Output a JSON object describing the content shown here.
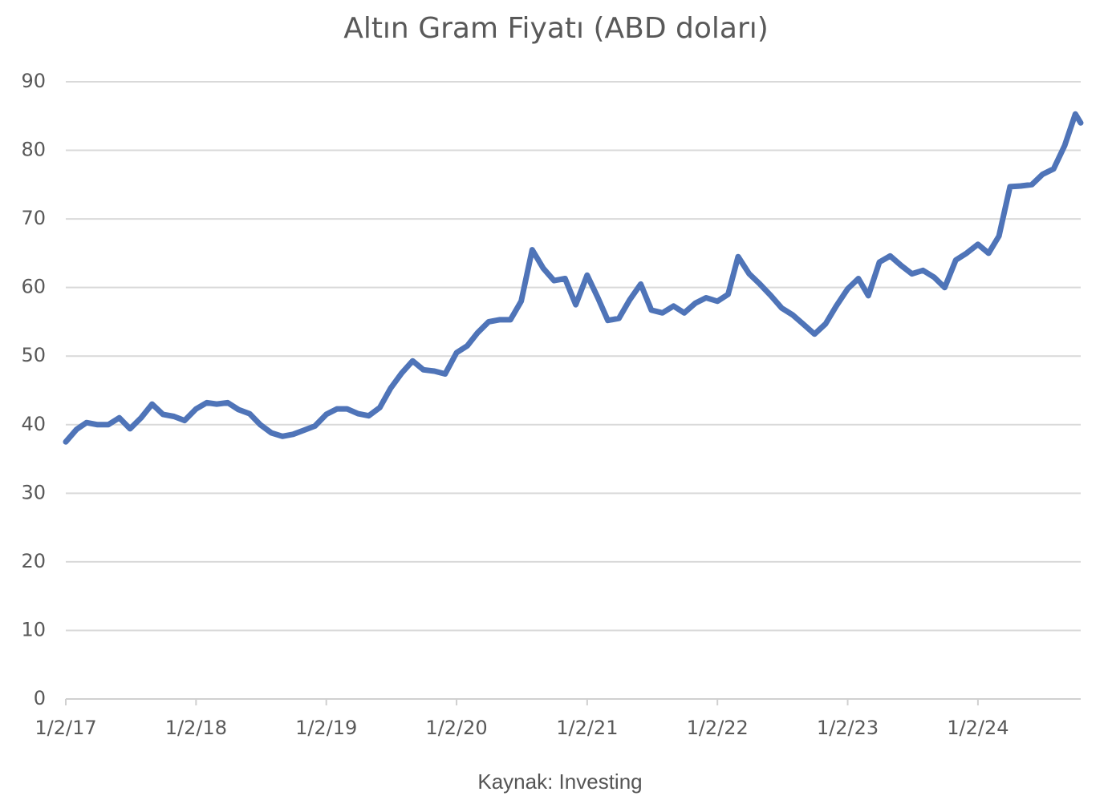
{
  "chart_data": {
    "type": "line",
    "title": "Altın Gram Fiyatı (ABD doları)",
    "source": "Kaynak: Investing",
    "x": [
      "1/2/17",
      "2/1/17",
      "3/1/17",
      "4/1/17",
      "5/1/17",
      "6/1/17",
      "7/1/17",
      "8/1/17",
      "9/1/17",
      "10/1/17",
      "11/1/17",
      "12/1/17",
      "1/2/18",
      "2/1/18",
      "3/1/18",
      "4/1/18",
      "5/1/18",
      "6/1/18",
      "7/1/18",
      "8/1/18",
      "9/1/18",
      "10/1/18",
      "11/1/18",
      "12/1/18",
      "1/2/19",
      "2/1/19",
      "3/1/19",
      "4/1/19",
      "5/1/19",
      "6/1/19",
      "7/1/19",
      "8/1/19",
      "9/1/19",
      "10/1/19",
      "11/1/19",
      "12/1/19",
      "1/2/20",
      "2/1/20",
      "3/1/20",
      "4/1/20",
      "5/1/20",
      "6/1/20",
      "7/1/20",
      "8/1/20",
      "9/1/20",
      "10/1/20",
      "11/1/20",
      "12/1/20",
      "1/2/21",
      "2/1/21",
      "3/1/21",
      "4/1/21",
      "5/1/21",
      "6/1/21",
      "7/1/21",
      "8/1/21",
      "9/1/21",
      "10/1/21",
      "11/1/21",
      "12/1/21",
      "1/2/22",
      "2/1/22",
      "3/1/22",
      "4/1/22",
      "5/1/22",
      "6/1/22",
      "7/1/22",
      "8/1/22",
      "9/1/22",
      "10/1/22",
      "11/1/22",
      "12/1/22",
      "1/2/23",
      "2/1/23",
      "3/1/23",
      "4/1/23",
      "5/1/23",
      "6/1/23",
      "7/1/23",
      "8/1/23",
      "9/1/23",
      "10/1/23",
      "11/1/23",
      "12/1/23",
      "1/2/24",
      "2/1/24",
      "3/1/24",
      "4/1/24",
      "5/1/24",
      "6/1/24",
      "7/1/24",
      "8/1/24",
      "9/1/24",
      "10/1/24",
      "10/16/24"
    ],
    "series": [
      {
        "name": "Altın Gram Fiyatı",
        "color": "#4f74b8",
        "values": [
          37.5,
          39.3,
          40.3,
          40,
          40,
          41,
          39.4,
          41,
          43,
          41.5,
          41.2,
          40.6,
          42.3,
          43.2,
          43,
          43.2,
          42.2,
          41.6,
          40,
          38.8,
          38.3,
          38.6,
          39.2,
          39.8,
          41.5,
          42.3,
          42.3,
          41.6,
          41.3,
          42.5,
          45.3,
          47.5,
          49.3,
          48,
          47.8,
          47.4,
          50.5,
          51.5,
          53.4,
          55,
          55.3,
          55.3,
          58,
          65.5,
          62.8,
          61,
          61.3,
          57.5,
          61.8,
          58.5,
          55.2,
          55.5,
          58.2,
          60.5,
          56.7,
          56.3,
          57.3,
          56.3,
          57.7,
          58.5,
          58,
          59,
          64.5,
          62,
          60.5,
          58.8,
          57,
          56,
          54.6,
          53.2,
          54.7,
          57.3,
          59.8,
          61.3,
          58.8,
          63.7,
          64.6,
          63.2,
          62,
          62.5,
          61.5,
          60,
          64,
          65,
          66.3,
          65,
          67.5,
          74.7,
          74.8,
          75,
          76.5,
          77.3,
          80.7,
          85.3,
          84
        ]
      }
    ],
    "xlim": [
      "1/2/17",
      "10/16/24"
    ],
    "xticks": [
      "1/2/17",
      "1/2/18",
      "1/2/19",
      "1/2/20",
      "1/2/21",
      "1/2/22",
      "1/2/23",
      "1/2/24"
    ],
    "ylim": [
      0,
      90
    ],
    "yticks": [
      0,
      10,
      20,
      30,
      40,
      50,
      60,
      70,
      80,
      90
    ],
    "grid": true
  }
}
